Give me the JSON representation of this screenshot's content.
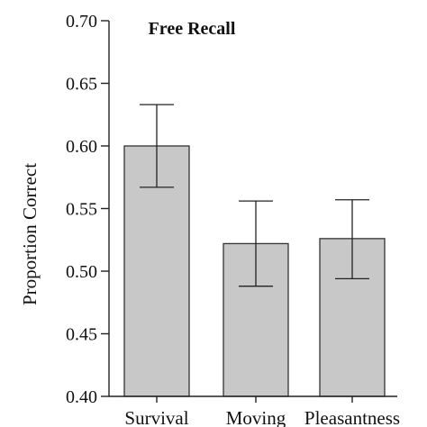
{
  "chart_data": {
    "type": "bar",
    "title": "Free Recall",
    "xlabel": "",
    "ylabel": "Proportion Correct",
    "categories": [
      "Survival",
      "Moving",
      "Pleasantness"
    ],
    "values": [
      0.6,
      0.522,
      0.526
    ],
    "error_upper": [
      0.633,
      0.556,
      0.557
    ],
    "error_lower": [
      0.567,
      0.488,
      0.494
    ],
    "ylim": [
      0.4,
      0.7
    ],
    "yticks": [
      "0.40",
      "0.45",
      "0.50",
      "0.55",
      "0.60",
      "0.65",
      "0.70"
    ],
    "grid": false,
    "legend": "none",
    "bar_color": "#c8c8c8",
    "bar_edge_color": "#333333",
    "axis_color": "#222222"
  }
}
